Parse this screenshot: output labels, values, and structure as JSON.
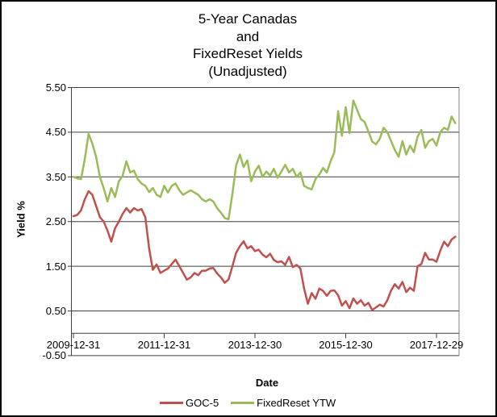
{
  "chart_data": {
    "type": "line",
    "title_lines": [
      "5-Year Canadas",
      "and",
      "FixedReset Yields",
      "(Unadjusted)"
    ],
    "xlabel": "Date",
    "ylabel": "Yield %",
    "ylim": [
      -0.5,
      5.5
    ],
    "y_major_unit": 1.0,
    "grid": "horizontal major gridlines on, vertical off",
    "legend_position": "bottom-center",
    "y_ticks": [
      "5.50",
      "4.50",
      "3.50",
      "2.50",
      "1.50",
      "0.50",
      "-0.50"
    ],
    "y_tick_values": [
      5.5,
      4.5,
      3.5,
      2.5,
      1.5,
      0.5,
      -0.5
    ],
    "x_ticks": [
      "2009-12-31",
      "2011-12-31",
      "2013-12-30",
      "2015-12-30",
      "2017-12-29"
    ],
    "x_tick_years": [
      0,
      2,
      4,
      6,
      8
    ],
    "colors": {
      "grid": "#3f3f3f",
      "axis": "#3f3f3f",
      "plot_border": "#808080"
    },
    "x_months": [
      "2009-12",
      "2010-01",
      "2010-02",
      "2010-03",
      "2010-04",
      "2010-05",
      "2010-06",
      "2010-07",
      "2010-08",
      "2010-09",
      "2010-10",
      "2010-11",
      "2010-12",
      "2011-01",
      "2011-02",
      "2011-03",
      "2011-04",
      "2011-05",
      "2011-06",
      "2011-07",
      "2011-08",
      "2011-09",
      "2011-10",
      "2011-11",
      "2011-12",
      "2012-01",
      "2012-02",
      "2012-03",
      "2012-04",
      "2012-05",
      "2012-06",
      "2012-07",
      "2012-08",
      "2012-09",
      "2012-10",
      "2012-11",
      "2012-12",
      "2013-01",
      "2013-02",
      "2013-03",
      "2013-04",
      "2013-05",
      "2013-06",
      "2013-07",
      "2013-08",
      "2013-09",
      "2013-10",
      "2013-11",
      "2013-12",
      "2014-01",
      "2014-02",
      "2014-03",
      "2014-04",
      "2014-05",
      "2014-06",
      "2014-07",
      "2014-08",
      "2014-09",
      "2014-10",
      "2014-11",
      "2014-12",
      "2015-01",
      "2015-02",
      "2015-03",
      "2015-04",
      "2015-05",
      "2015-06",
      "2015-07",
      "2015-08",
      "2015-09",
      "2015-10",
      "2015-11",
      "2015-12",
      "2016-01",
      "2016-02",
      "2016-03",
      "2016-04",
      "2016-05",
      "2016-06",
      "2016-07",
      "2016-08",
      "2016-09",
      "2016-10",
      "2016-11",
      "2016-12",
      "2017-01",
      "2017-02",
      "2017-03",
      "2017-04",
      "2017-05",
      "2017-06",
      "2017-07",
      "2017-08",
      "2017-09",
      "2017-10",
      "2017-11",
      "2017-12",
      "2018-01",
      "2018-02",
      "2018-03",
      "2018-04",
      "2018-05"
    ],
    "series": [
      {
        "name": "GOC-5",
        "color": "#C0504D",
        "values": [
          2.62,
          2.65,
          2.75,
          3.0,
          3.18,
          3.1,
          2.85,
          2.6,
          2.5,
          2.3,
          2.05,
          2.35,
          2.5,
          2.67,
          2.8,
          2.7,
          2.8,
          2.75,
          2.78,
          2.6,
          1.9,
          1.42,
          1.54,
          1.35,
          1.4,
          1.45,
          1.55,
          1.65,
          1.5,
          1.35,
          1.2,
          1.25,
          1.35,
          1.3,
          1.4,
          1.4,
          1.45,
          1.46,
          1.34,
          1.25,
          1.13,
          1.2,
          1.49,
          1.8,
          1.95,
          2.06,
          1.9,
          1.95,
          1.84,
          1.87,
          1.76,
          1.7,
          1.78,
          1.64,
          1.59,
          1.61,
          1.53,
          1.71,
          1.48,
          1.53,
          1.45,
          1.0,
          0.66,
          0.9,
          0.77,
          1.0,
          0.95,
          0.84,
          0.95,
          0.96,
          0.85,
          0.62,
          0.72,
          0.56,
          0.78,
          0.66,
          0.74,
          0.62,
          0.68,
          0.52,
          0.58,
          0.64,
          0.6,
          0.74,
          0.96,
          1.1,
          1.0,
          1.15,
          0.92,
          1.02,
          0.95,
          1.5,
          1.55,
          1.8,
          1.65,
          1.65,
          1.6,
          1.85,
          2.05,
          1.95,
          2.1,
          2.16
        ]
      },
      {
        "name": "FixedReset YTW",
        "color": "#9BBB59",
        "values": [
          3.5,
          3.47,
          3.45,
          3.9,
          4.46,
          4.25,
          3.95,
          3.5,
          3.25,
          2.95,
          3.25,
          3.05,
          3.4,
          3.52,
          3.85,
          3.6,
          3.64,
          3.45,
          3.35,
          3.3,
          3.16,
          3.25,
          3.1,
          3.05,
          3.3,
          3.15,
          3.3,
          3.35,
          3.2,
          3.1,
          3.15,
          3.2,
          3.15,
          3.1,
          3.0,
          2.95,
          3.0,
          2.95,
          2.8,
          2.7,
          2.58,
          2.55,
          3.1,
          3.75,
          4.0,
          3.72,
          3.87,
          3.4,
          3.62,
          3.75,
          3.5,
          3.62,
          3.53,
          3.68,
          3.48,
          3.62,
          3.77,
          3.6,
          3.68,
          3.5,
          3.6,
          3.3,
          3.25,
          3.22,
          3.45,
          3.55,
          3.7,
          3.6,
          3.85,
          4.05,
          4.97,
          4.42,
          5.06,
          4.48,
          5.21,
          5.0,
          4.79,
          4.73,
          4.52,
          4.29,
          4.23,
          4.35,
          4.6,
          4.5,
          4.3,
          4.1,
          3.95,
          4.3,
          4.0,
          4.2,
          4.05,
          4.4,
          4.55,
          4.15,
          4.3,
          4.35,
          4.2,
          4.5,
          4.6,
          4.55,
          4.85,
          4.7
        ]
      }
    ]
  }
}
